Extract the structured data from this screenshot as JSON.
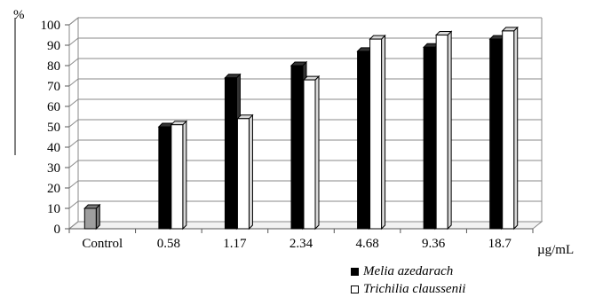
{
  "chart_data": {
    "type": "bar",
    "categories": [
      "Control",
      "0.58",
      "1.17",
      "2.34",
      "4.68",
      "9.36",
      "18.7"
    ],
    "series": [
      {
        "name": "Melia azedarach",
        "values": [
          10,
          50,
          74,
          80,
          87,
          89,
          93
        ],
        "color": "#000000"
      },
      {
        "name": "Trichilia claussenii",
        "values": [
          null,
          51,
          54,
          73,
          93,
          95,
          97
        ],
        "color": "#ffffff"
      }
    ],
    "control_color": "#9e9e9e",
    "ylabel": "%",
    "xlabel": "µg/mL",
    "ylim": [
      0,
      100
    ],
    "yticks": [
      0,
      10,
      20,
      30,
      40,
      50,
      60,
      70,
      80,
      90,
      100
    ],
    "grid": true,
    "style": "3d",
    "legend_position": "bottom-right"
  }
}
